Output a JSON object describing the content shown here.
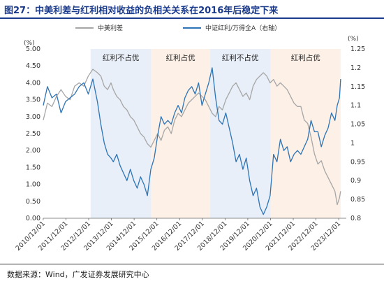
{
  "title": "图27：中美利差与红利相对收益的负相关关系在2016年后稳定下来",
  "source": "数据来源：Wind，广发证券发展研究中心",
  "chart_data": {
    "type": "line",
    "left_unit": "(%)",
    "right_unit": "(%)",
    "left_ticks": [
      "0.00",
      "0.50",
      "1.00",
      "1.50",
      "2.00",
      "2.50",
      "3.00",
      "3.50",
      "4.00",
      "4.50",
      "5.00"
    ],
    "right_ticks": [
      "0.8",
      "0.85",
      "0.9",
      "0.95",
      "1",
      "1.05",
      "1.1",
      "1.15",
      "1.2",
      "1.25"
    ],
    "x_ticks": [
      "2010/12/01",
      "2011/12/01",
      "2012/12/01",
      "2013/12/01",
      "2014/12/01",
      "2015/12/01",
      "2016/12/01",
      "2017/12/01",
      "2018/12/01",
      "2019/12/01",
      "2020/12/01",
      "2021/12/01",
      "2022/12/01",
      "2023/12/01"
    ],
    "xlim": [
      2010.92,
      2024.25
    ],
    "ylim_left": [
      0,
      5
    ],
    "ylim_right": [
      0.8,
      1.25
    ],
    "bands": [
      {
        "start": 2013.0,
        "end": 2015.67,
        "label": "红利不占优",
        "color": "#e8eff8"
      },
      {
        "start": 2015.67,
        "end": 2018.25,
        "label": "红利占优",
        "color": "#fdf0e7"
      },
      {
        "start": 2018.25,
        "end": 2020.92,
        "label": "红利不占优",
        "color": "#e8eff8"
      },
      {
        "start": 2020.92,
        "end": 2024.0,
        "label": "红利占优",
        "color": "#fdf0e7"
      }
    ],
    "series": [
      {
        "name": "中美利差",
        "axis": "left",
        "color": "#a6a6a6",
        "x": [
          2010.92,
          2011.1,
          2011.3,
          2011.5,
          2011.7,
          2011.9,
          2012.1,
          2012.3,
          2012.5,
          2012.7,
          2012.9,
          2013.1,
          2013.3,
          2013.45,
          2013.6,
          2013.75,
          2013.9,
          2014.0,
          2014.15,
          2014.3,
          2014.45,
          2014.6,
          2014.75,
          2014.9,
          2015.05,
          2015.2,
          2015.35,
          2015.5,
          2015.65,
          2015.8,
          2015.95,
          2016.1,
          2016.25,
          2016.4,
          2016.55,
          2016.7,
          2016.85,
          2017.0,
          2017.15,
          2017.3,
          2017.45,
          2017.6,
          2017.75,
          2017.9,
          2018.05,
          2018.2,
          2018.35,
          2018.5,
          2018.65,
          2018.8,
          2018.95,
          2019.1,
          2019.25,
          2019.4,
          2019.55,
          2019.7,
          2019.85,
          2020.0,
          2020.15,
          2020.3,
          2020.45,
          2020.6,
          2020.75,
          2020.9,
          2021.05,
          2021.2,
          2021.35,
          2021.5,
          2021.65,
          2021.8,
          2021.95,
          2022.1,
          2022.25,
          2022.4,
          2022.55,
          2022.7,
          2022.85,
          2023.0,
          2023.15,
          2023.3,
          2023.45,
          2023.6,
          2023.75,
          2023.85,
          2023.95,
          2024.0
        ],
        "values": [
          2.9,
          3.4,
          3.3,
          3.6,
          3.8,
          3.6,
          3.5,
          3.9,
          4.0,
          3.9,
          4.2,
          4.4,
          4.3,
          4.2,
          3.9,
          3.8,
          4.0,
          3.8,
          3.6,
          3.5,
          3.3,
          3.2,
          3.0,
          2.9,
          2.7,
          2.5,
          2.4,
          2.2,
          2.1,
          2.3,
          2.5,
          2.3,
          2.6,
          2.7,
          2.5,
          2.9,
          3.1,
          3.0,
          3.2,
          3.4,
          3.5,
          3.6,
          3.7,
          3.6,
          3.5,
          3.3,
          3.1,
          3.0,
          3.3,
          3.2,
          3.5,
          3.7,
          3.9,
          4.0,
          3.8,
          3.6,
          3.7,
          3.5,
          3.9,
          4.1,
          4.2,
          4.3,
          4.2,
          4.0,
          4.1,
          3.9,
          4.0,
          3.9,
          3.8,
          3.6,
          3.4,
          3.3,
          3.3,
          2.9,
          2.8,
          2.4,
          1.9,
          1.6,
          1.7,
          1.4,
          1.2,
          1.0,
          0.8,
          0.4,
          0.6,
          0.8
        ]
      },
      {
        "name": "中证红利/万得全A（右轴）",
        "axis": "right",
        "color": "#2d74b6",
        "x": [
          2010.92,
          2011.1,
          2011.3,
          2011.5,
          2011.7,
          2011.9,
          2012.1,
          2012.3,
          2012.5,
          2012.7,
          2012.9,
          2013.1,
          2013.3,
          2013.45,
          2013.6,
          2013.75,
          2013.9,
          2014.0,
          2014.15,
          2014.3,
          2014.45,
          2014.6,
          2014.75,
          2014.9,
          2015.05,
          2015.2,
          2015.35,
          2015.5,
          2015.65,
          2015.8,
          2015.95,
          2016.1,
          2016.25,
          2016.4,
          2016.55,
          2016.7,
          2016.85,
          2017.0,
          2017.15,
          2017.3,
          2017.45,
          2017.6,
          2017.75,
          2017.9,
          2018.05,
          2018.2,
          2018.35,
          2018.5,
          2018.65,
          2018.8,
          2018.95,
          2019.1,
          2019.25,
          2019.4,
          2019.55,
          2019.7,
          2019.85,
          2020.0,
          2020.15,
          2020.3,
          2020.45,
          2020.6,
          2020.75,
          2020.9,
          2021.05,
          2021.2,
          2021.35,
          2021.5,
          2021.65,
          2021.8,
          2021.95,
          2022.1,
          2022.25,
          2022.4,
          2022.55,
          2022.7,
          2022.85,
          2023.0,
          2023.15,
          2023.3,
          2023.45,
          2023.6,
          2023.75,
          2023.85,
          2023.95,
          2024.0
        ],
        "values": [
          1.1,
          1.15,
          1.12,
          1.13,
          1.08,
          1.11,
          1.12,
          1.13,
          1.15,
          1.16,
          1.13,
          1.17,
          1.11,
          1.05,
          1.0,
          0.97,
          0.96,
          0.95,
          0.97,
          0.94,
          0.92,
          0.9,
          0.93,
          0.9,
          0.88,
          0.91,
          0.89,
          0.86,
          0.93,
          0.96,
          1.02,
          1.07,
          1.05,
          1.06,
          1.05,
          1.08,
          1.1,
          1.08,
          1.12,
          1.14,
          1.15,
          1.13,
          1.16,
          1.1,
          1.13,
          1.16,
          1.2,
          1.12,
          1.06,
          1.05,
          1.08,
          1.04,
          1.0,
          0.95,
          0.97,
          0.93,
          0.96,
          0.9,
          0.86,
          0.88,
          0.83,
          0.81,
          0.83,
          0.86,
          0.97,
          0.95,
          1.01,
          0.98,
          0.99,
          0.95,
          0.97,
          0.98,
          0.97,
          0.99,
          1.01,
          1.06,
          1.03,
          1.03,
          0.99,
          1.02,
          1.04,
          1.08,
          1.06,
          1.1,
          1.12,
          1.17
        ]
      }
    ]
  }
}
